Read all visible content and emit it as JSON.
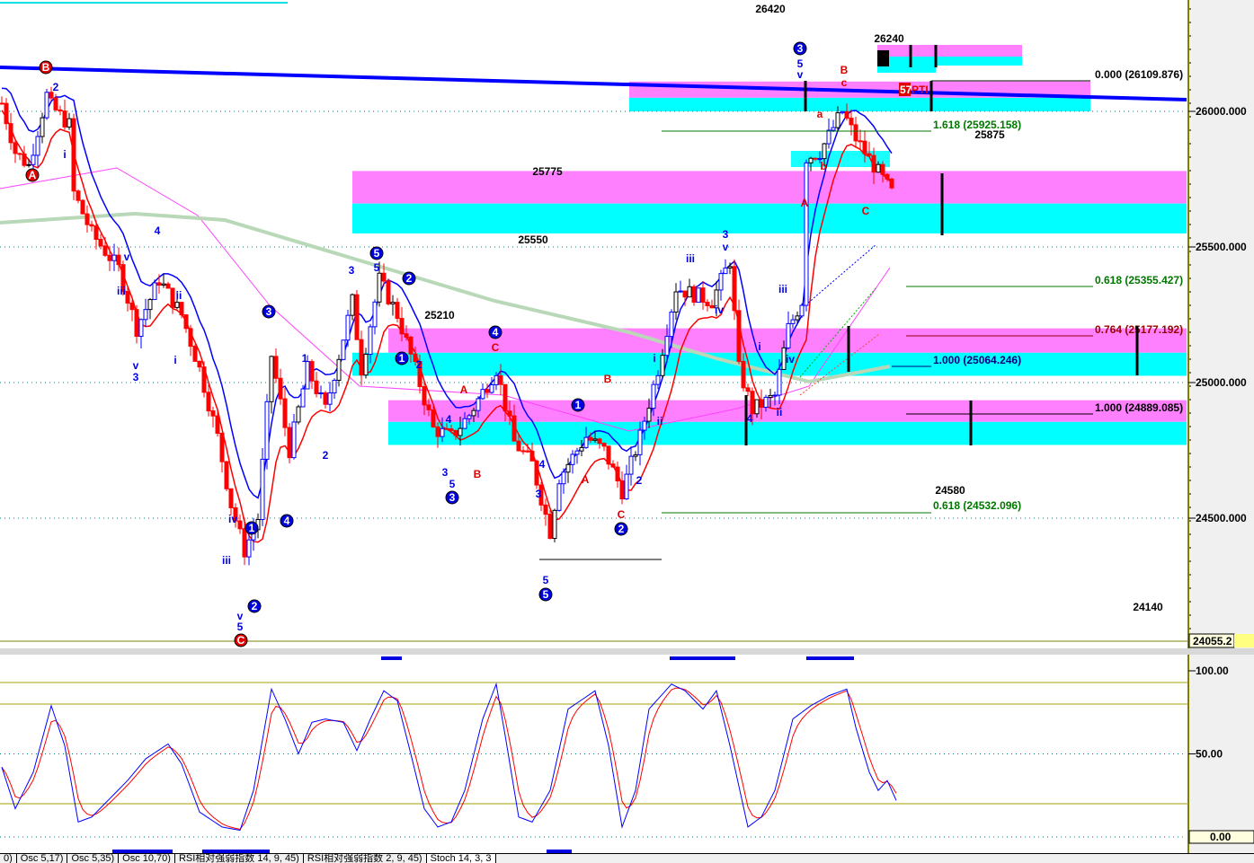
{
  "chart_data": [
    {
      "type": "candlestick",
      "title": "",
      "xlabel": "",
      "ylabel": "",
      "ylim": [
        24040,
        26440
      ],
      "y_ticks": [
        "26000.000",
        "25500.000",
        "25000.000",
        "24500.000"
      ],
      "last_price": "24055.2",
      "price_keypoints": [
        [
          0,
          26030
        ],
        [
          3,
          25850
        ],
        [
          6,
          25800
        ],
        [
          10,
          26060
        ],
        [
          11,
          26020
        ],
        [
          15,
          25950
        ],
        [
          16,
          25700
        ],
        [
          20,
          25550
        ],
        [
          26,
          25420
        ],
        [
          30,
          25200
        ],
        [
          35,
          25380
        ],
        [
          40,
          25250
        ],
        [
          44,
          25050
        ],
        [
          48,
          24800
        ],
        [
          51,
          24550
        ],
        [
          54,
          24380
        ],
        [
          57,
          24500
        ],
        [
          60,
          25100
        ],
        [
          64,
          24750
        ],
        [
          68,
          25050
        ],
        [
          72,
          24900
        ],
        [
          78,
          25300
        ],
        [
          80,
          25050
        ],
        [
          84,
          25380
        ],
        [
          88,
          25250
        ],
        [
          92,
          25050
        ],
        [
          96,
          24830
        ],
        [
          100,
          24800
        ],
        [
          104,
          24880
        ],
        [
          110,
          25050
        ],
        [
          114,
          24780
        ],
        [
          118,
          24700
        ],
        [
          122,
          24450
        ],
        [
          124,
          24650
        ],
        [
          130,
          24800
        ],
        [
          134,
          24750
        ],
        [
          138,
          24600
        ],
        [
          142,
          24800
        ],
        [
          146,
          25050
        ],
        [
          150,
          25350
        ],
        [
          158,
          25300
        ],
        [
          162,
          25450
        ],
        [
          164,
          25050
        ],
        [
          167,
          24900
        ],
        [
          172,
          24950
        ],
        [
          175,
          25200
        ],
        [
          178,
          25300
        ],
        [
          179,
          25830
        ],
        [
          182,
          25850
        ],
        [
          187,
          26000
        ],
        [
          190,
          25900
        ],
        [
          194,
          25800
        ],
        [
          198,
          25700
        ]
      ],
      "zones": [
        {
          "top": 25780,
          "mid": 25660,
          "bottom": 25550
        },
        {
          "top": 25200,
          "mid": 25110,
          "bottom": 25025
        },
        {
          "top": 24935,
          "mid": 24855,
          "bottom": 24770
        },
        {
          "top": 26110,
          "mid": 26050,
          "bottom": 26000
        }
      ],
      "fib_labels": [
        {
          "text": "0.000 (26109.876)",
          "color": "#000000"
        },
        {
          "text": "1.618 (25925.158)",
          "color": "#007700"
        },
        {
          "text": "0.618 (25355.427)",
          "color": "#007700"
        },
        {
          "text": "0.764 (25177.192)",
          "color": "#990000"
        },
        {
          "text": "1.000 (25064.246)",
          "color": "#000080"
        },
        {
          "text": "1.000 (24889.085)",
          "color": "#000000"
        },
        {
          "text": "0.618 (24532.096)",
          "color": "#007700"
        }
      ],
      "price_annotations": [
        "26420",
        "26240",
        "25875",
        "25775",
        "25550",
        "25210",
        "24580",
        "24140"
      ],
      "marker": {
        "number": "57",
        "text": "PTI"
      },
      "wave_labels": [
        {
          "t": "B",
          "c": "#e00000",
          "o": true
        },
        {
          "t": "2",
          "c": "#0000e0",
          "o": false
        },
        {
          "t": "A",
          "c": "#e00000",
          "o": true
        },
        {
          "t": "i",
          "c": "#0000e0",
          "o": false
        },
        {
          "t": "4",
          "c": "#0000e0",
          "o": false
        },
        {
          "t": "v",
          "c": "#0000e0",
          "o": false
        },
        {
          "t": "iii",
          "c": "#0000e0",
          "o": false
        },
        {
          "t": "ii",
          "c": "#0000e0",
          "o": false
        },
        {
          "t": "v",
          "c": "#0000e0",
          "o": false
        },
        {
          "t": "3",
          "c": "#0000e0",
          "o": false
        },
        {
          "t": "i",
          "c": "#0000e0",
          "o": false
        },
        {
          "t": "3",
          "c": "#0000e0",
          "o": true
        },
        {
          "t": "1",
          "c": "#0000e0",
          "o": false
        },
        {
          "t": "2",
          "c": "#0000e0",
          "o": false
        },
        {
          "t": "iv",
          "c": "#0000e0",
          "o": false
        },
        {
          "t": "1",
          "c": "#0000e0",
          "o": true
        },
        {
          "t": "4",
          "c": "#0000e0",
          "o": true
        },
        {
          "t": "iii",
          "c": "#0000e0",
          "o": false
        },
        {
          "t": "v",
          "c": "#0000e0",
          "o": false
        },
        {
          "t": "5",
          "c": "#0000e0",
          "o": false
        },
        {
          "t": "C",
          "c": "#e00000",
          "o": true
        },
        {
          "t": "2",
          "c": "#0000e0",
          "o": true
        },
        {
          "t": "3",
          "c": "#0000e0",
          "o": false
        },
        {
          "t": "5",
          "c": "#0000e0",
          "o": false
        },
        {
          "t": "5",
          "c": "#0000e0",
          "o": true
        },
        {
          "t": "2",
          "c": "#0000e0",
          "o": true
        },
        {
          "t": "1",
          "c": "#0000e0",
          "o": true
        },
        {
          "t": "2",
          "c": "#0000e0",
          "o": false
        },
        {
          "t": "4",
          "c": "#0000e0",
          "o": false
        },
        {
          "t": "3",
          "c": "#0000e0",
          "o": false
        },
        {
          "t": "5",
          "c": "#0000e0",
          "o": false
        },
        {
          "t": "3",
          "c": "#0000e0",
          "o": true
        },
        {
          "t": "A",
          "c": "#e00000",
          "o": false
        },
        {
          "t": "B",
          "c": "#e00000",
          "o": false
        },
        {
          "t": "4",
          "c": "#0000e0",
          "o": true
        },
        {
          "t": "C",
          "c": "#e00000",
          "o": false
        },
        {
          "t": "4",
          "c": "#0000e0",
          "o": false
        },
        {
          "t": "3",
          "c": "#0000e0",
          "o": false
        },
        {
          "t": "5",
          "c": "#0000e0",
          "o": false
        },
        {
          "t": "5",
          "c": "#0000e0",
          "o": true
        },
        {
          "t": "1",
          "c": "#0000e0",
          "o": true
        },
        {
          "t": "B",
          "c": "#e00000",
          "o": false
        },
        {
          "t": "A",
          "c": "#e00000",
          "o": false
        },
        {
          "t": "2",
          "c": "#0000e0",
          "o": false
        },
        {
          "t": "C",
          "c": "#e00000",
          "o": false
        },
        {
          "t": "2",
          "c": "#0000e0",
          "o": true
        },
        {
          "t": "iii",
          "c": "#0000e0",
          "o": false
        },
        {
          "t": "3",
          "c": "#0000e0",
          "o": false
        },
        {
          "t": "v",
          "c": "#0000e0",
          "o": false
        },
        {
          "t": "iv",
          "c": "#0000e0",
          "o": false
        },
        {
          "t": "i",
          "c": "#0000e0",
          "o": false
        },
        {
          "t": "ii",
          "c": "#0000e0",
          "o": false
        },
        {
          "t": "iii",
          "c": "#0000e0",
          "o": false
        },
        {
          "t": "i",
          "c": "#0000e0",
          "o": false
        },
        {
          "t": "iv",
          "c": "#0000e0",
          "o": false
        },
        {
          "t": "ii",
          "c": "#0000e0",
          "o": false
        },
        {
          "t": "4",
          "c": "#0000e0",
          "o": false
        },
        {
          "t": "3",
          "c": "#0000e0",
          "o": true
        },
        {
          "t": "5",
          "c": "#0000e0",
          "o": false
        },
        {
          "t": "v",
          "c": "#0000e0",
          "o": false
        },
        {
          "t": "B",
          "c": "#e00000",
          "o": false
        },
        {
          "t": "c",
          "c": "#e00000",
          "o": false
        },
        {
          "t": "a",
          "c": "#e00000",
          "o": false
        },
        {
          "t": "b",
          "c": "#e00000",
          "o": false
        },
        {
          "t": "A",
          "c": "#e00000",
          "o": false
        },
        {
          "t": "C",
          "c": "#e00000",
          "o": false
        }
      ]
    },
    {
      "type": "line",
      "title": "Stoch 14, 3, 3",
      "ylim": [
        0,
        100
      ],
      "y_ticks": [
        "100.00",
        "50.00"
      ],
      "last_value": "0.00",
      "levels": [
        93,
        80,
        20
      ],
      "series": [
        {
          "color": "#0000ff",
          "keypoints": [
            [
              0,
              42
            ],
            [
              3,
              17
            ],
            [
              7,
              39
            ],
            [
              11,
              79
            ],
            [
              14,
              55
            ],
            [
              17,
              9
            ],
            [
              20,
              12
            ],
            [
              24,
              23
            ],
            [
              28,
              34
            ],
            [
              32,
              47
            ],
            [
              37,
              56
            ],
            [
              40,
              44
            ],
            [
              44,
              15
            ],
            [
              49,
              6
            ],
            [
              53,
              4
            ],
            [
              56,
              28
            ],
            [
              60,
              89
            ],
            [
              63,
              71
            ],
            [
              66,
              50
            ],
            [
              69,
              69
            ],
            [
              72,
              71
            ],
            [
              76,
              69
            ],
            [
              79,
              52
            ],
            [
              82,
              71
            ],
            [
              85,
              88
            ],
            [
              88,
              82
            ],
            [
              91,
              50
            ],
            [
              94,
              17
            ],
            [
              97,
              6
            ],
            [
              100,
              9
            ],
            [
              103,
              28
            ],
            [
              107,
              71
            ],
            [
              110,
              92
            ],
            [
              112,
              61
            ],
            [
              115,
              12
            ],
            [
              118,
              9
            ],
            [
              122,
              28
            ],
            [
              126,
              77
            ],
            [
              132,
              88
            ],
            [
              135,
              55
            ],
            [
              138,
              6
            ],
            [
              141,
              28
            ],
            [
              144,
              77
            ],
            [
              149,
              92
            ],
            [
              152,
              88
            ],
            [
              156,
              77
            ],
            [
              159,
              88
            ],
            [
              162,
              55
            ],
            [
              166,
              6
            ],
            [
              169,
              12
            ],
            [
              172,
              28
            ],
            [
              176,
              71
            ],
            [
              180,
              79
            ],
            [
              184,
              85
            ],
            [
              188,
              89
            ],
            [
              190,
              66
            ],
            [
              193,
              39
            ],
            [
              195,
              28
            ],
            [
              197,
              34
            ],
            [
              199,
              22
            ]
          ]
        }
      ]
    }
  ],
  "tabs": [
    "0)",
    "Osc 5,17)",
    "Osc 5,35)",
    "Osc 10,70)",
    "RSI相对强弱指数 14, 9, 45)",
    "RSI相对强弱指数 2, 9, 45)",
    "Stoch 14, 3, 3"
  ],
  "colors": {
    "pink": "#ff80ff",
    "cyan": "#00ffff",
    "trend": "#0000ff",
    "ma_red": "#ff0000",
    "ma_blue": "#0000ff",
    "ma_magenta": "#ff40ff",
    "ma_green": "#b8d8b8"
  }
}
